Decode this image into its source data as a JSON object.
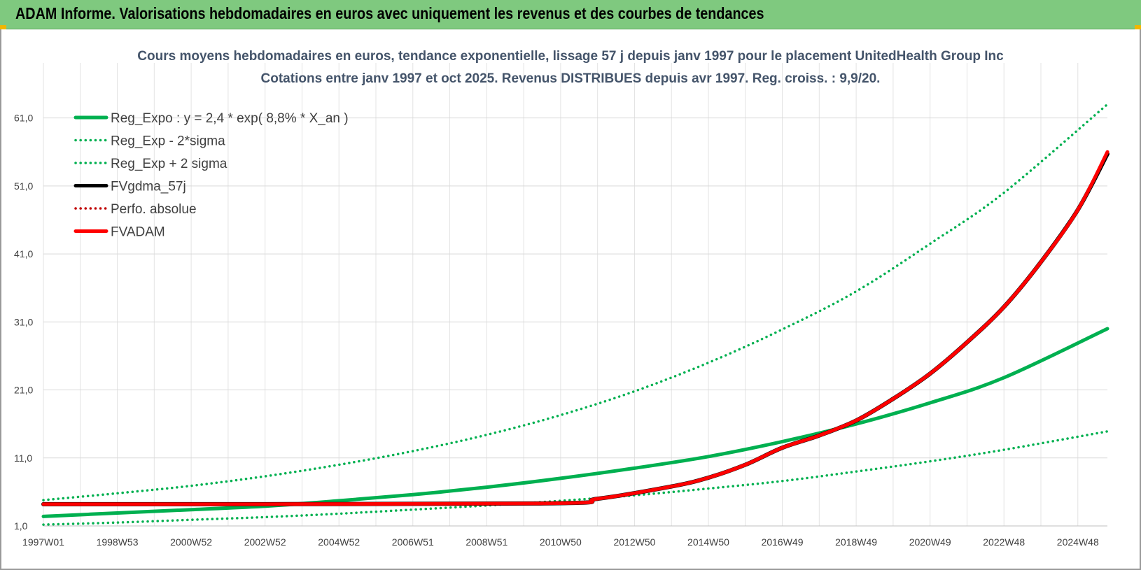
{
  "header": {
    "title": "ADAM Informe. Valorisations hebdomadaires en euros avec uniquement les revenus et des courbes de tendances",
    "background": "#7fc97f"
  },
  "chart_data": {
    "type": "line",
    "title": "Cours moyens hebdomadaires en euros, tendance exponentielle, lissage 57 j depuis janv 1997 pour le placement UnitedHealth Group Inc",
    "subtitle": "Cotations entre janv 1997 et oct 2025. Revenus DISTRIBUES depuis avr 1997. Reg. croiss. : 9,9/20.",
    "xlabel": "",
    "ylabel": "",
    "ylim": [
      1,
      66
    ],
    "xlim": [
      1997.0,
      2025.8
    ],
    "yticks": [
      "1,0",
      "11,0",
      "21,0",
      "31,0",
      "41,0",
      "51,0",
      "61,0"
    ],
    "xticks": [
      {
        "label": "1997W01",
        "x": 1997.0
      },
      {
        "label": "1998W53",
        "x": 1999.0
      },
      {
        "label": "2000W52",
        "x": 2001.0
      },
      {
        "label": "2002W52",
        "x": 2003.0
      },
      {
        "label": "2004W52",
        "x": 2005.0
      },
      {
        "label": "2006W51",
        "x": 2007.0
      },
      {
        "label": "2008W51",
        "x": 2009.0
      },
      {
        "label": "2010W50",
        "x": 2011.0
      },
      {
        "label": "2012W50",
        "x": 2013.0
      },
      {
        "label": "2014W50",
        "x": 2015.0
      },
      {
        "label": "2016W49",
        "x": 2017.0
      },
      {
        "label": "2018W49",
        "x": 2019.0
      },
      {
        "label": "2020W49",
        "x": 2021.0
      },
      {
        "label": "2022W48",
        "x": 2023.0
      },
      {
        "label": "2024W48",
        "x": 2025.0
      }
    ],
    "grid": true,
    "legend_position": "top-left",
    "series": [
      {
        "name": "Reg_Expo : y = 2,4 * exp( 8,8% *  X_an )",
        "color": "#00b050",
        "style": "solid",
        "x": [
          1997.0,
          1999.0,
          2001.0,
          2003.0,
          2005.0,
          2007.0,
          2009.0,
          2011.0,
          2013.0,
          2015.0,
          2017.0,
          2019.0,
          2021.0,
          2023.0,
          2025.8
        ],
        "y": [
          2.4,
          2.9,
          3.4,
          3.9,
          4.7,
          5.6,
          6.7,
          8.0,
          9.5,
          11.2,
          13.4,
          16.0,
          19.1,
          22.8,
          30.0
        ]
      },
      {
        "name": "Reg_Exp - 2*sigma",
        "color": "#00b050",
        "style": "dotted",
        "x": [
          1997.0,
          1999.0,
          2001.0,
          2003.0,
          2005.0,
          2007.0,
          2009.0,
          2011.0,
          2013.0,
          2015.0,
          2017.0,
          2019.0,
          2021.0,
          2023.0,
          2025.8
        ],
        "y": [
          1.2,
          1.5,
          1.9,
          2.3,
          2.8,
          3.4,
          4.0,
          4.7,
          5.5,
          6.5,
          7.6,
          9.0,
          10.5,
          12.2,
          14.9
        ]
      },
      {
        "name": "Reg_Exp + 2 sigma",
        "color": "#00b050",
        "style": "dotted",
        "x": [
          1997.0,
          1999.0,
          2001.0,
          2003.0,
          2005.0,
          2007.0,
          2009.0,
          2011.0,
          2013.0,
          2015.0,
          2017.0,
          2019.0,
          2021.0,
          2023.0,
          2025.8
        ],
        "y": [
          4.8,
          5.8,
          6.9,
          8.3,
          10.0,
          12.0,
          14.4,
          17.3,
          20.8,
          25.0,
          29.9,
          35.5,
          42.5,
          50.0,
          63.0
        ]
      },
      {
        "name": "FVgdma_57j",
        "color": "#000000",
        "style": "solid",
        "x": [
          1997.0,
          2010.3,
          2012.0,
          2014.0,
          2015.0,
          2016.0,
          2017.0,
          2018.0,
          2019.0,
          2020.0,
          2021.0,
          2022.0,
          2023.0,
          2024.0,
          2025.0,
          2025.8
        ],
        "y": [
          4.2,
          4.3,
          5.0,
          6.8,
          8.1,
          10.0,
          12.5,
          14.3,
          16.5,
          19.7,
          23.4,
          28.0,
          33.2,
          39.8,
          47.5,
          55.7
        ]
      },
      {
        "name": "Perfo. absolue",
        "color": "#c00000",
        "style": "dotted",
        "x": [],
        "y": []
      },
      {
        "name": "FVADAM",
        "color": "#ff0000",
        "style": "solid",
        "x": [
          1997.0,
          2010.3,
          2012.0,
          2014.0,
          2015.0,
          2016.0,
          2017.0,
          2018.0,
          2019.0,
          2020.0,
          2021.0,
          2022.0,
          2023.0,
          2024.0,
          2025.0,
          2025.8
        ],
        "y": [
          4.2,
          4.3,
          5.0,
          6.8,
          8.1,
          10.0,
          12.5,
          14.3,
          16.5,
          19.7,
          23.4,
          28.0,
          33.2,
          39.8,
          47.5,
          56.0
        ]
      }
    ]
  }
}
